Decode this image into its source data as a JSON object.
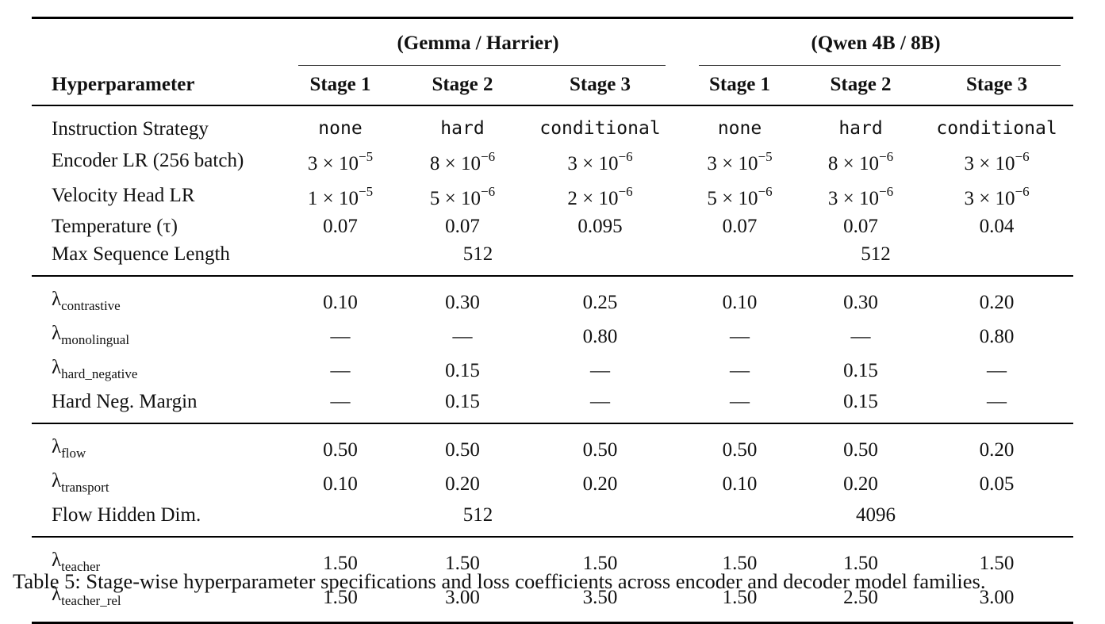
{
  "table": {
    "groups": [
      "(Gemma / Harrier)",
      "(Qwen 4B / 8B)"
    ],
    "header_label": "Hyperparameter",
    "stages": [
      "Stage 1",
      "Stage 2",
      "Stage 3",
      "Stage 1",
      "Stage 2",
      "Stage 3"
    ],
    "block1": {
      "instruction": {
        "label": "Instruction Strategy",
        "values": [
          "none",
          "hard",
          "conditional",
          "none",
          "hard",
          "conditional"
        ]
      },
      "encoder_lr": {
        "label": "Encoder LR (256 batch)",
        "values": [
          {
            "m": "3",
            "x": "×",
            "b": "10",
            "e": "−5"
          },
          {
            "m": "8",
            "x": "×",
            "b": "10",
            "e": "−6"
          },
          {
            "m": "3",
            "x": "×",
            "b": "10",
            "e": "−6"
          },
          {
            "m": "3",
            "x": "×",
            "b": "10",
            "e": "−5"
          },
          {
            "m": "8",
            "x": "×",
            "b": "10",
            "e": "−6"
          },
          {
            "m": "3",
            "x": "×",
            "b": "10",
            "e": "−6"
          }
        ]
      },
      "velocity_lr": {
        "label": "Velocity Head LR",
        "values": [
          {
            "m": "1",
            "x": "×",
            "b": "10",
            "e": "−5"
          },
          {
            "m": "5",
            "x": "×",
            "b": "10",
            "e": "−6"
          },
          {
            "m": "2",
            "x": "×",
            "b": "10",
            "e": "−6"
          },
          {
            "m": "5",
            "x": "×",
            "b": "10",
            "e": "−6"
          },
          {
            "m": "3",
            "x": "×",
            "b": "10",
            "e": "−6"
          },
          {
            "m": "3",
            "x": "×",
            "b": "10",
            "e": "−6"
          }
        ]
      },
      "temperature": {
        "label": "Temperature (τ)",
        "values": [
          "0.07",
          "0.07",
          "0.095",
          "0.07",
          "0.07",
          "0.04"
        ]
      },
      "max_seq": {
        "label": "Max Sequence Length",
        "values": [
          "512",
          "512"
        ]
      }
    },
    "block2": {
      "contrastive": {
        "sym": "λ",
        "sub": "contrastive",
        "values": [
          "0.10",
          "0.30",
          "0.25",
          "0.10",
          "0.30",
          "0.20"
        ]
      },
      "monolingual": {
        "sym": "λ",
        "sub": "monolingual",
        "values": [
          "—",
          "—",
          "0.80",
          "—",
          "—",
          "0.80"
        ]
      },
      "hard_negative": {
        "sym": "λ",
        "sub": "hard_negative",
        "values": [
          "—",
          "0.15",
          "—",
          "—",
          "0.15",
          "—"
        ]
      },
      "margin": {
        "label": "Hard Neg. Margin",
        "values": [
          "—",
          "0.15",
          "—",
          "—",
          "0.15",
          "—"
        ]
      }
    },
    "block3": {
      "flow": {
        "sym": "λ",
        "sub": "flow",
        "values": [
          "0.50",
          "0.50",
          "0.50",
          "0.50",
          "0.50",
          "0.20"
        ]
      },
      "transport": {
        "sym": "λ",
        "sub": "transport",
        "values": [
          "0.10",
          "0.20",
          "0.20",
          "0.10",
          "0.20",
          "0.05"
        ]
      },
      "hidden_dim": {
        "label": "Flow Hidden Dim.",
        "values": [
          "512",
          "4096"
        ]
      }
    },
    "block4": {
      "teacher": {
        "sym": "λ",
        "sub": "teacher",
        "values": [
          "1.50",
          "1.50",
          "1.50",
          "1.50",
          "1.50",
          "1.50"
        ]
      },
      "teacher_rel": {
        "sym": "λ",
        "sub": "teacher_rel",
        "values": [
          "1.50",
          "3.00",
          "3.50",
          "1.50",
          "2.50",
          "3.00"
        ]
      }
    }
  },
  "caption": "Table 5: Stage-wise hyperparameter specifications and loss coefficients across encoder and decoder model families."
}
